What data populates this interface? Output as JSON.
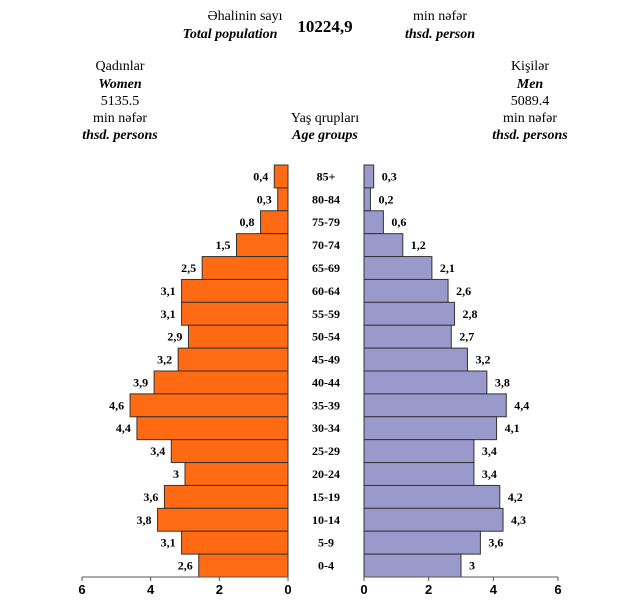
{
  "header": {
    "total_label_az": "Əhalinin sayı",
    "total_label_en": "Total population",
    "total_value": "10224,9",
    "unit_az": "min nəfər",
    "unit_en": "thsd. person"
  },
  "women": {
    "label_az": "Qadınlar",
    "label_en": "Women",
    "total": "5135.5",
    "unit_az": "min nəfər",
    "unit_en": "thsd. persons"
  },
  "men": {
    "label_az": "Kişilər",
    "label_en": "Men",
    "total": "5089.4",
    "unit_az": "min nəfər",
    "unit_en": "thsd. persons"
  },
  "age_groups_label_az": "Yaş qrupları",
  "age_groups_label_en": "Age groups",
  "chart_data": {
    "type": "bar",
    "subtype": "population-pyramid",
    "categories": [
      "85+",
      "80-84",
      "75-79",
      "70-74",
      "65-69",
      "60-64",
      "55-59",
      "50-54",
      "45-49",
      "40-44",
      "35-39",
      "30-34",
      "25-29",
      "20-24",
      "15-19",
      "10-14",
      "5-9",
      "0-4"
    ],
    "series": [
      {
        "name": "Women",
        "color": "#ff6a13",
        "values": [
          0.4,
          0.3,
          0.8,
          1.5,
          2.5,
          3.1,
          3.1,
          2.9,
          3.2,
          3.9,
          4.6,
          4.4,
          3.4,
          3,
          3.6,
          3.8,
          3.1,
          2.6
        ],
        "labels": [
          "0,4",
          "0,3",
          "0,8",
          "1,5",
          "2,5",
          "3,1",
          "3,1",
          "2,9",
          "3,2",
          "3,9",
          "4,6",
          "4,4",
          "3,4",
          "3",
          "3,6",
          "3,8",
          "3,1",
          "2,6"
        ]
      },
      {
        "name": "Men",
        "color": "#9999cc",
        "values": [
          0.3,
          0.2,
          0.6,
          1.2,
          2.1,
          2.6,
          2.8,
          2.7,
          3.2,
          3.8,
          4.4,
          4.1,
          3.4,
          3.4,
          4.2,
          4.3,
          3.6,
          3
        ],
        "labels": [
          "0,3",
          "0,2",
          "0,6",
          "1,2",
          "2,1",
          "2,6",
          "2,8",
          "2,7",
          "3,2",
          "3,8",
          "4,4",
          "4,1",
          "3,4",
          "3,4",
          "4,2",
          "4,3",
          "3,6",
          "3"
        ]
      }
    ],
    "xlim": [
      0,
      6
    ],
    "xticks_women": [
      "6",
      "4",
      "2",
      "0"
    ],
    "xticks_men": [
      "0",
      "2",
      "4",
      "6"
    ],
    "grid": false
  }
}
